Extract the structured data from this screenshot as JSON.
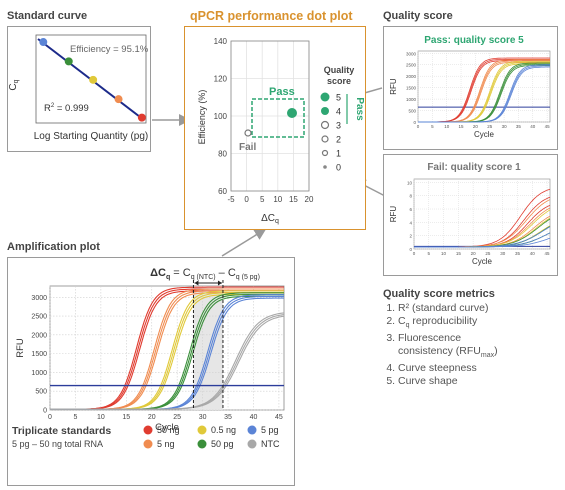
{
  "standard_curve": {
    "section_title": "Standard curve",
    "y_label": "C",
    "y_label_sub": "q",
    "x_label": "Log Starting Quantity (pg)",
    "efficiency": "Efficiency = 95.1%",
    "r2_prefix": "R",
    "r2_suffix": " = 0.999",
    "points": [
      {
        "x": 0.05,
        "y": 0.06,
        "color": "#5b84d6"
      },
      {
        "x": 0.29,
        "y": 0.29,
        "color": "#3a8f3a"
      },
      {
        "x": 0.52,
        "y": 0.51,
        "color": "#e0c93a"
      },
      {
        "x": 0.76,
        "y": 0.74,
        "color": "#f08c50"
      },
      {
        "x": 0.98,
        "y": 0.96,
        "color": "#e03c30"
      }
    ]
  },
  "dot_plot": {
    "title": "qPCR performance dot plot",
    "y_label": "Efficiency (%)",
    "x_label": "ΔC",
    "x_label_sub": "q",
    "pass_label": "Pass",
    "fail_label": "Fail",
    "y_ticks": [
      "140",
      "120",
      "100",
      "80",
      "60"
    ],
    "x_ticks": [
      "-5",
      "0",
      "5",
      "10",
      "15",
      "20"
    ],
    "legend_title_1": "Quality",
    "legend_title_2": "score",
    "legend_pass": "Pass",
    "legend_items": [
      "5",
      "4",
      "3",
      "2",
      "1",
      "0"
    ]
  },
  "chart_data": [
    {
      "type": "scatter",
      "title": "qPCR performance dot plot",
      "xlabel": "ΔCq",
      "ylabel": "Efficiency (%)",
      "xlim": [
        -5,
        20
      ],
      "ylim": [
        60,
        140
      ],
      "x_ticks": [
        -5,
        0,
        5,
        10,
        15,
        20
      ],
      "y_ticks": [
        60,
        80,
        100,
        120,
        140
      ],
      "points": [
        {
          "x": 14.8,
          "y": 103,
          "quality_score": 5,
          "status": "Pass"
        },
        {
          "x": 1.2,
          "y": 91,
          "quality_score": 1,
          "status": "Fail"
        }
      ],
      "pass_region": {
        "x": [
          4,
          19
        ],
        "y": [
          90,
          110
        ]
      }
    },
    {
      "type": "line",
      "title": "Amplification plot",
      "xlabel": "Cycle",
      "ylabel": "RFU",
      "xlim": [
        0,
        46
      ],
      "ylim": [
        0,
        3300
      ],
      "x_ticks": [
        0,
        5,
        10,
        15,
        20,
        25,
        30,
        35,
        40,
        45
      ],
      "y_ticks": [
        0,
        500,
        1000,
        1500,
        2000,
        2500,
        3000
      ],
      "threshold": 650,
      "series": [
        {
          "name": "50 ng",
          "midpoint_cycle": 17.0,
          "plateau": 3250,
          "color": "#e03c30"
        },
        {
          "name": "5 ng",
          "midpoint_cycle": 20.5,
          "plateau": 3200,
          "color": "#f08c50"
        },
        {
          "name": "0.5 ng",
          "midpoint_cycle": 24.0,
          "plateau": 3150,
          "color": "#e0c93a"
        },
        {
          "name": "50 pg",
          "midpoint_cycle": 27.5,
          "plateau": 3100,
          "color": "#3a8f3a"
        },
        {
          "name": "5 pg",
          "midpoint_cycle": 31.0,
          "plateau": 3050,
          "color": "#5b84d6"
        },
        {
          "name": "NTC",
          "midpoint_cycle": 36.5,
          "plateau": 2600,
          "color": "#a8a8a8"
        }
      ]
    }
  ],
  "quality_pass": {
    "section_title": "Quality score",
    "chart_title": "Pass: quality score 5",
    "y_label": "RFU",
    "x_label": "Cycle",
    "y_ticks": [
      "3000",
      "2500",
      "2000",
      "1500",
      "1000",
      "500",
      "0"
    ],
    "x_ticks": [
      "0",
      "5",
      "10",
      "15",
      "20",
      "25",
      "30",
      "35",
      "40",
      "45"
    ]
  },
  "quality_fail": {
    "chart_title": "Fail: quality score 1",
    "y_label": "RFU",
    "x_label": "Cycle",
    "y_ticks": [
      "10",
      "8",
      "6",
      "4",
      "2",
      "0"
    ],
    "x_ticks": [
      "0",
      "5",
      "10",
      "15",
      "20",
      "25",
      "30",
      "35",
      "40",
      "45"
    ]
  },
  "metrics": {
    "title": "Quality score metrics",
    "item1": "R² (standard curve)",
    "item2_main": "C",
    "item2_sub": "q",
    "item2_rest": " reproducibility",
    "item3_line1": "Fluorescence",
    "item3_line2": "consistency (RFU",
    "item3_sub": "max",
    "item3_end": ")",
    "item4": "Curve steepness",
    "item5": "Curve shape"
  },
  "amplification": {
    "section_title": "Amplification plot",
    "y_label": "RFU",
    "x_label": "Cycle",
    "y_ticks": [
      "3000",
      "2500",
      "2000",
      "1500",
      "1000",
      "500",
      "0"
    ],
    "x_ticks": [
      "0",
      "5",
      "10",
      "15",
      "20",
      "25",
      "30",
      "35",
      "40",
      "45"
    ],
    "delta_main": "ΔC",
    "delta_sub": "q",
    "eq1": " = C",
    "eq1_sub": "q (NTC)",
    "eq2": " – C",
    "eq2_sub": "q (5 pg)"
  },
  "legend": {
    "title": "Triplicate standards",
    "subtitle": "5 pg – 50 ng total RNA",
    "items": [
      {
        "label": "50 ng",
        "color": "#e03c30"
      },
      {
        "label": "0.5 ng",
        "color": "#e0c93a"
      },
      {
        "label": "5 pg",
        "color": "#5b84d6"
      },
      {
        "label": "5 ng",
        "color": "#f08c50"
      },
      {
        "label": "50 pg",
        "color": "#3a8f3a"
      },
      {
        "label": "NTC",
        "color": "#a8a8a8"
      }
    ]
  },
  "colors": {
    "accent_orange": "#d9922e",
    "pass_green": "#2ea672",
    "threshold_blue": "#2c3d9b",
    "line_navy": "#1c2a8a",
    "arrow_gray": "#9a9a9a"
  }
}
